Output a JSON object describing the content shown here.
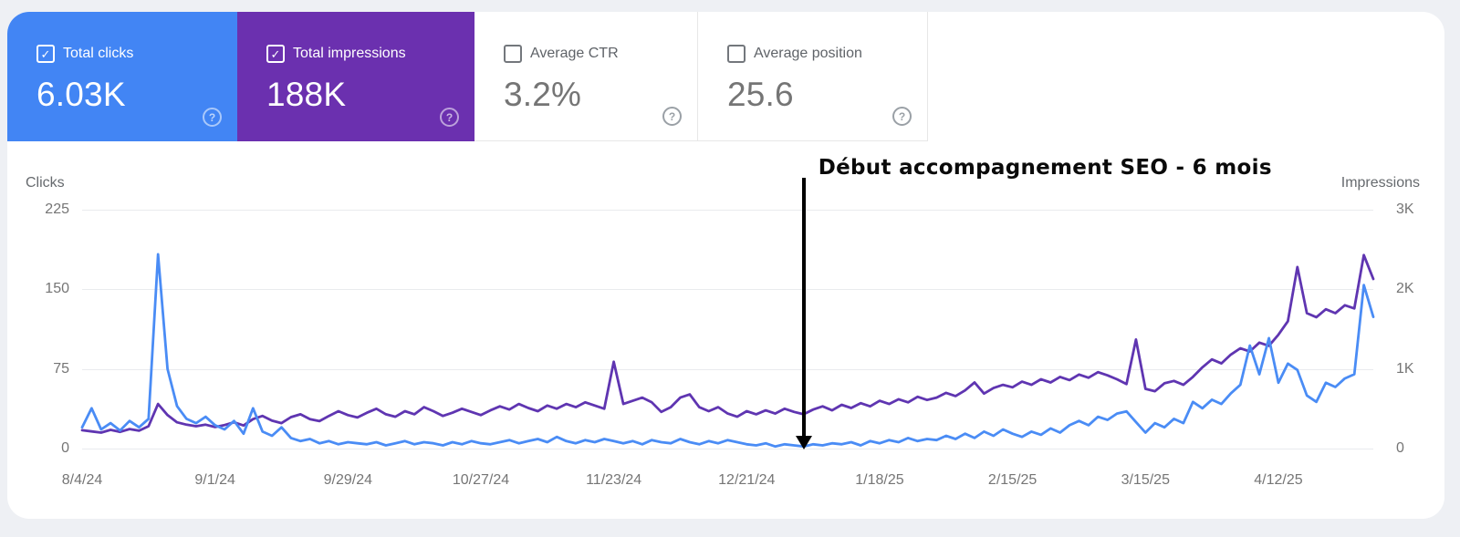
{
  "cards": [
    {
      "label": "Total clicks",
      "value": "6.03K",
      "selected": true,
      "color": "#4285f4",
      "help_icon": "?"
    },
    {
      "label": "Total impressions",
      "value": "188K",
      "selected": true,
      "color": "#6b30af",
      "help_icon": "?"
    },
    {
      "label": "Average CTR",
      "value": "3.2%",
      "selected": false,
      "help_icon": "?"
    },
    {
      "label": "Average position",
      "value": "25.6",
      "selected": false,
      "help_icon": "?"
    }
  ],
  "annotation": {
    "text": "Début accompagnement SEO - 6 mois",
    "arrow_day": 152
  },
  "chart_data": {
    "type": "line",
    "x_axis": {
      "tick_labels": [
        "8/4/24",
        "9/1/24",
        "9/29/24",
        "10/27/24",
        "11/23/24",
        "12/21/24",
        "1/18/25",
        "2/15/25",
        "3/15/25",
        "4/12/25"
      ],
      "tick_interval_days": 28,
      "total_days": 272
    },
    "left_axis": {
      "label": "Clicks",
      "tick_labels": [
        "225",
        "150",
        "75",
        "0"
      ],
      "max": 225,
      "min": 0
    },
    "right_axis": {
      "label": "Impressions",
      "tick_labels": [
        "3K",
        "2K",
        "1K",
        "0"
      ],
      "max": 3000,
      "min": 0
    },
    "grid": true,
    "sample_interval_days": 2,
    "series": [
      {
        "name": "Impressions",
        "axis": "right",
        "color": "#5f35b1",
        "values": [
          230,
          215,
          200,
          235,
          210,
          245,
          225,
          280,
          560,
          420,
          330,
          300,
          280,
          300,
          270,
          295,
          330,
          290,
          370,
          410,
          350,
          320,
          395,
          430,
          370,
          345,
          410,
          470,
          420,
          390,
          450,
          500,
          430,
          400,
          470,
          430,
          520,
          470,
          410,
          450,
          500,
          460,
          420,
          480,
          530,
          490,
          560,
          510,
          470,
          540,
          500,
          560,
          520,
          580,
          540,
          500,
          1090,
          560,
          600,
          640,
          580,
          460,
          520,
          640,
          680,
          520,
          470,
          520,
          440,
          400,
          470,
          430,
          480,
          440,
          500,
          460,
          430,
          490,
          530,
          480,
          550,
          510,
          570,
          530,
          600,
          560,
          620,
          580,
          650,
          610,
          640,
          700,
          660,
          730,
          830,
          690,
          760,
          800,
          770,
          840,
          800,
          870,
          830,
          900,
          860,
          930,
          890,
          960,
          920,
          870,
          810,
          1370,
          750,
          720,
          820,
          850,
          800,
          900,
          1020,
          1120,
          1070,
          1180,
          1260,
          1220,
          1330,
          1290,
          1430,
          1600,
          2280,
          1700,
          1650,
          1750,
          1700,
          1800,
          1760,
          2430,
          2130
        ]
      },
      {
        "name": "Clicks",
        "axis": "left",
        "color": "#4a8cf5",
        "values": [
          20,
          38,
          18,
          24,
          17,
          26,
          20,
          28,
          183,
          75,
          40,
          28,
          24,
          30,
          22,
          18,
          26,
          14,
          38,
          16,
          12,
          20,
          10,
          7,
          9,
          5,
          7,
          4,
          6,
          5,
          4,
          6,
          3,
          5,
          7,
          4,
          6,
          5,
          3,
          6,
          4,
          7,
          5,
          4,
          6,
          8,
          5,
          7,
          9,
          6,
          11,
          7,
          5,
          8,
          6,
          9,
          7,
          5,
          7,
          4,
          8,
          6,
          5,
          9,
          6,
          4,
          7,
          5,
          8,
          6,
          4,
          3,
          5,
          2,
          4,
          3,
          2,
          4,
          3,
          5,
          4,
          6,
          3,
          7,
          5,
          8,
          6,
          10,
          7,
          9,
          8,
          12,
          9,
          14,
          10,
          16,
          12,
          18,
          14,
          11,
          16,
          13,
          19,
          15,
          22,
          26,
          22,
          30,
          27,
          33,
          35,
          25,
          15,
          24,
          20,
          28,
          24,
          44,
          38,
          46,
          42,
          52,
          60,
          97,
          70,
          104,
          62,
          80,
          74,
          50,
          44,
          62,
          58,
          66,
          70,
          154,
          124
        ]
      }
    ]
  }
}
